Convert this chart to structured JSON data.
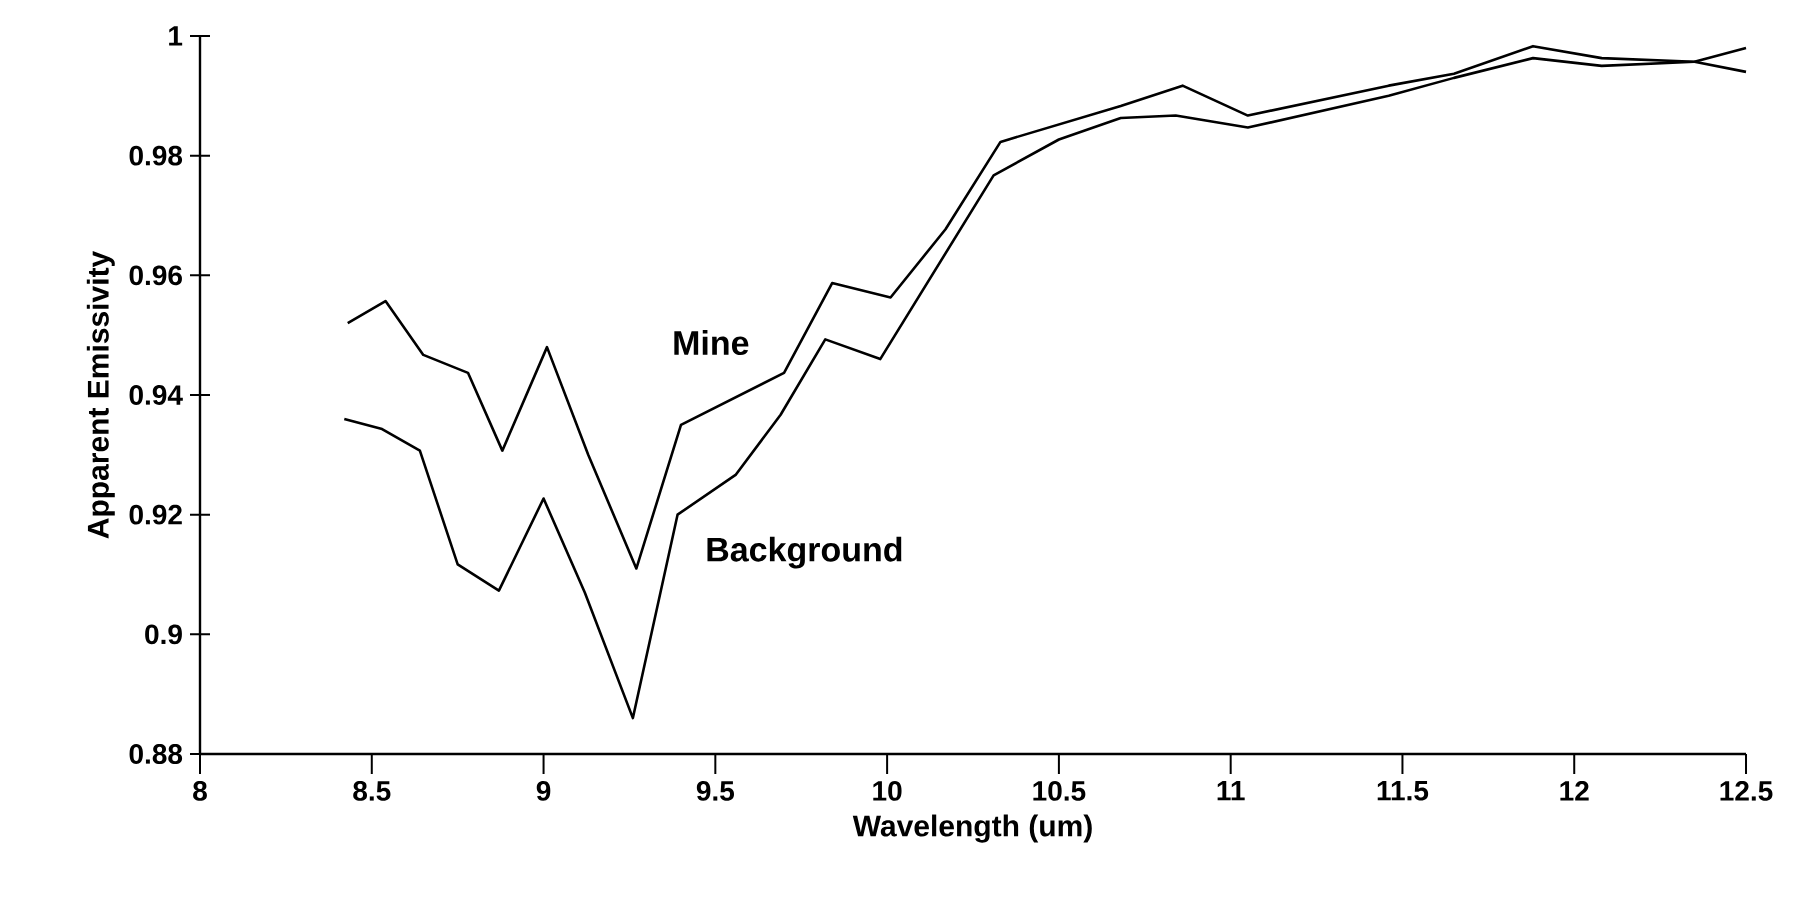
{
  "chart_data": {
    "type": "line",
    "xlabel": "Wavelength (um)",
    "ylabel": "Apparent Emissivity",
    "xlim": [
      8,
      12.5
    ],
    "ylim": [
      0.88,
      1
    ],
    "xticks": [
      8,
      8.5,
      9,
      9.5,
      10,
      10.5,
      11,
      11.5,
      12,
      12.5
    ],
    "yticks": [
      0.88,
      0.9,
      0.92,
      0.94,
      0.96,
      0.98,
      1
    ],
    "grid": false,
    "marker": "none",
    "line_style": "solid",
    "series": [
      {
        "name": "Mine",
        "color": "#000000",
        "x": [
          8.43,
          8.54,
          8.65,
          8.78,
          8.88,
          9.01,
          9.13,
          9.27,
          9.4,
          9.7,
          9.84,
          10.01,
          10.17,
          10.33,
          10.68,
          10.86,
          11.05,
          11.46,
          11.65,
          11.88,
          12.08,
          12.35,
          12.5
        ],
        "values": [
          0.952,
          0.9557,
          0.9467,
          0.9437,
          0.9307,
          0.948,
          0.93,
          0.911,
          0.935,
          0.9437,
          0.9587,
          0.9563,
          0.9677,
          0.9823,
          0.9883,
          0.9917,
          0.9867,
          0.9917,
          0.9937,
          0.9983,
          0.9963,
          0.9957,
          0.994
        ]
      },
      {
        "name": "Background",
        "color": "#000000",
        "x": [
          8.42,
          8.53,
          8.64,
          8.75,
          8.87,
          9.0,
          9.12,
          9.26,
          9.39,
          9.56,
          9.69,
          9.82,
          9.98,
          10.31,
          10.5,
          10.68,
          10.84,
          11.05,
          11.46,
          11.65,
          11.88,
          12.08,
          12.35,
          12.5
        ],
        "values": [
          0.936,
          0.9343,
          0.9307,
          0.9117,
          0.9073,
          0.9227,
          0.907,
          0.886,
          0.92,
          0.9267,
          0.9367,
          0.9493,
          0.946,
          0.9767,
          0.9827,
          0.9863,
          0.9867,
          0.9847,
          0.99,
          0.993,
          0.9963,
          0.995,
          0.9957,
          0.998
        ]
      }
    ]
  }
}
